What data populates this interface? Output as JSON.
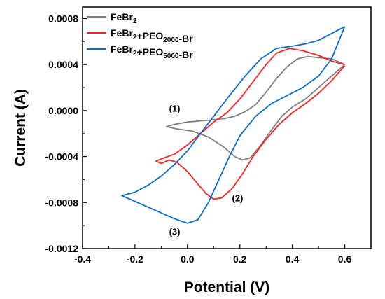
{
  "chart_data": {
    "type": "line",
    "xlabel": "Potential (V)",
    "ylabel": "Current (A)",
    "xlim": [
      -0.4,
      0.7
    ],
    "ylim": [
      -0.0012,
      0.0009
    ],
    "x_ticks": [
      -0.4,
      -0.2,
      0.0,
      0.2,
      0.4,
      0.6
    ],
    "x_tick_labels": [
      "-0.4",
      "-0.2",
      "0.0",
      "0.2",
      "0.4",
      "0.6"
    ],
    "y_ticks": [
      -0.0012,
      -0.0008,
      -0.0004,
      0.0,
      0.0004,
      0.0008
    ],
    "y_tick_labels": [
      "-0.0012",
      "-0.0008",
      "-0.0004",
      "0.0000",
      "0.0004",
      "0.0008"
    ],
    "grid": false,
    "legend_position": "top-left",
    "series": [
      {
        "label_parts": [
          [
            "FeBr",
            ""
          ],
          [
            "2",
            "sub"
          ]
        ],
        "color": "#808080",
        "points": [
          [
            0.6,
            0.0004
          ],
          [
            0.55,
            0.00045
          ],
          [
            0.5,
            0.00046
          ],
          [
            0.46,
            0.00047
          ],
          [
            0.42,
            0.00045
          ],
          [
            0.38,
            0.00038
          ],
          [
            0.34,
            0.00028
          ],
          [
            0.3,
            0.00016
          ],
          [
            0.26,
            5e-05
          ],
          [
            0.22,
            -1e-05
          ],
          [
            0.18,
            -5e-05
          ],
          [
            0.14,
            -7e-05
          ],
          [
            0.1,
            -8e-05
          ],
          [
            0.05,
            -9e-05
          ],
          [
            0.0,
            -0.0001
          ],
          [
            -0.05,
            -0.00012
          ],
          [
            -0.08,
            -0.00014
          ],
          [
            -0.04,
            -0.00016
          ],
          [
            0.02,
            -0.00018
          ],
          [
            0.08,
            -0.00023
          ],
          [
            0.14,
            -0.00032
          ],
          [
            0.18,
            -0.0004
          ],
          [
            0.21,
            -0.00043
          ],
          [
            0.24,
            -0.00041
          ],
          [
            0.28,
            -0.0003
          ],
          [
            0.32,
            -0.00017
          ],
          [
            0.36,
            -5e-05
          ],
          [
            0.4,
            3e-05
          ],
          [
            0.45,
            0.0001
          ],
          [
            0.5,
            0.0002
          ],
          [
            0.55,
            0.0003
          ],
          [
            0.6,
            0.0004
          ]
        ]
      },
      {
        "label_parts": [
          [
            "FeBr",
            ""
          ],
          [
            "2",
            "sub"
          ],
          [
            "+PEO",
            ""
          ],
          [
            "2000",
            "sub"
          ],
          [
            "-Br",
            ""
          ]
        ],
        "color": "#ff2020",
        "points": [
          [
            0.6,
            0.0004
          ],
          [
            0.55,
            0.00043
          ],
          [
            0.5,
            0.00048
          ],
          [
            0.44,
            0.00052
          ],
          [
            0.39,
            0.00054
          ],
          [
            0.34,
            0.0005
          ],
          [
            0.3,
            0.0004
          ],
          [
            0.25,
            0.00025
          ],
          [
            0.2,
            0.0001
          ],
          [
            0.15,
            -2e-05
          ],
          [
            0.1,
            -0.0001
          ],
          [
            0.05,
            -0.0002
          ],
          [
            0.0,
            -0.0003
          ],
          [
            -0.05,
            -0.00038
          ],
          [
            -0.1,
            -0.00042
          ],
          [
            -0.12,
            -0.00044
          ],
          [
            -0.1,
            -0.00046
          ],
          [
            -0.07,
            -0.00043
          ],
          [
            -0.04,
            -0.00045
          ],
          [
            0.0,
            -0.00053
          ],
          [
            0.04,
            -0.00064
          ],
          [
            0.07,
            -0.00072
          ],
          [
            0.1,
            -0.00077
          ],
          [
            0.13,
            -0.00076
          ],
          [
            0.17,
            -0.00068
          ],
          [
            0.21,
            -0.00055
          ],
          [
            0.25,
            -0.0004
          ],
          [
            0.3,
            -0.00025
          ],
          [
            0.35,
            -0.00012
          ],
          [
            0.4,
            -2e-05
          ],
          [
            0.45,
            6e-05
          ],
          [
            0.5,
            0.00015
          ],
          [
            0.55,
            0.00026
          ],
          [
            0.6,
            0.00039
          ]
        ]
      },
      {
        "label_parts": [
          [
            "FeBr",
            ""
          ],
          [
            "2",
            "sub"
          ],
          [
            "+PEO",
            ""
          ],
          [
            "5000",
            "sub"
          ],
          [
            "-Br",
            ""
          ]
        ],
        "color": "#0a6ecf",
        "points": [
          [
            0.6,
            0.00073
          ],
          [
            0.55,
            0.00067
          ],
          [
            0.5,
            0.00061
          ],
          [
            0.45,
            0.00058
          ],
          [
            0.4,
            0.00056
          ],
          [
            0.34,
            0.00054
          ],
          [
            0.28,
            0.00045
          ],
          [
            0.22,
            0.0003
          ],
          [
            0.15,
            0.0001
          ],
          [
            0.1,
            -5e-05
          ],
          [
            0.05,
            -0.0002
          ],
          [
            0.0,
            -0.00035
          ],
          [
            -0.05,
            -0.00047
          ],
          [
            -0.1,
            -0.00057
          ],
          [
            -0.15,
            -0.00065
          ],
          [
            -0.2,
            -0.00071
          ],
          [
            -0.25,
            -0.00074
          ],
          [
            -0.2,
            -0.00079
          ],
          [
            -0.12,
            -0.00087
          ],
          [
            -0.05,
            -0.00094
          ],
          [
            0.0,
            -0.00098
          ],
          [
            0.04,
            -0.00095
          ],
          [
            0.08,
            -0.0008
          ],
          [
            0.12,
            -0.0006
          ],
          [
            0.16,
            -0.0004
          ],
          [
            0.2,
            -0.00022
          ],
          [
            0.26,
            -5e-05
          ],
          [
            0.32,
            6e-05
          ],
          [
            0.38,
            0.00013
          ],
          [
            0.44,
            0.0002
          ],
          [
            0.5,
            0.0003
          ],
          [
            0.55,
            0.00045
          ],
          [
            0.6,
            0.00073
          ]
        ]
      }
    ],
    "annotations": [
      {
        "text": "(1)",
        "x": -0.07,
        "y": -1e-05
      },
      {
        "text": "(2)",
        "x": 0.17,
        "y": -0.00079
      },
      {
        "text": "(3)",
        "x": -0.07,
        "y": -0.00108
      }
    ]
  }
}
